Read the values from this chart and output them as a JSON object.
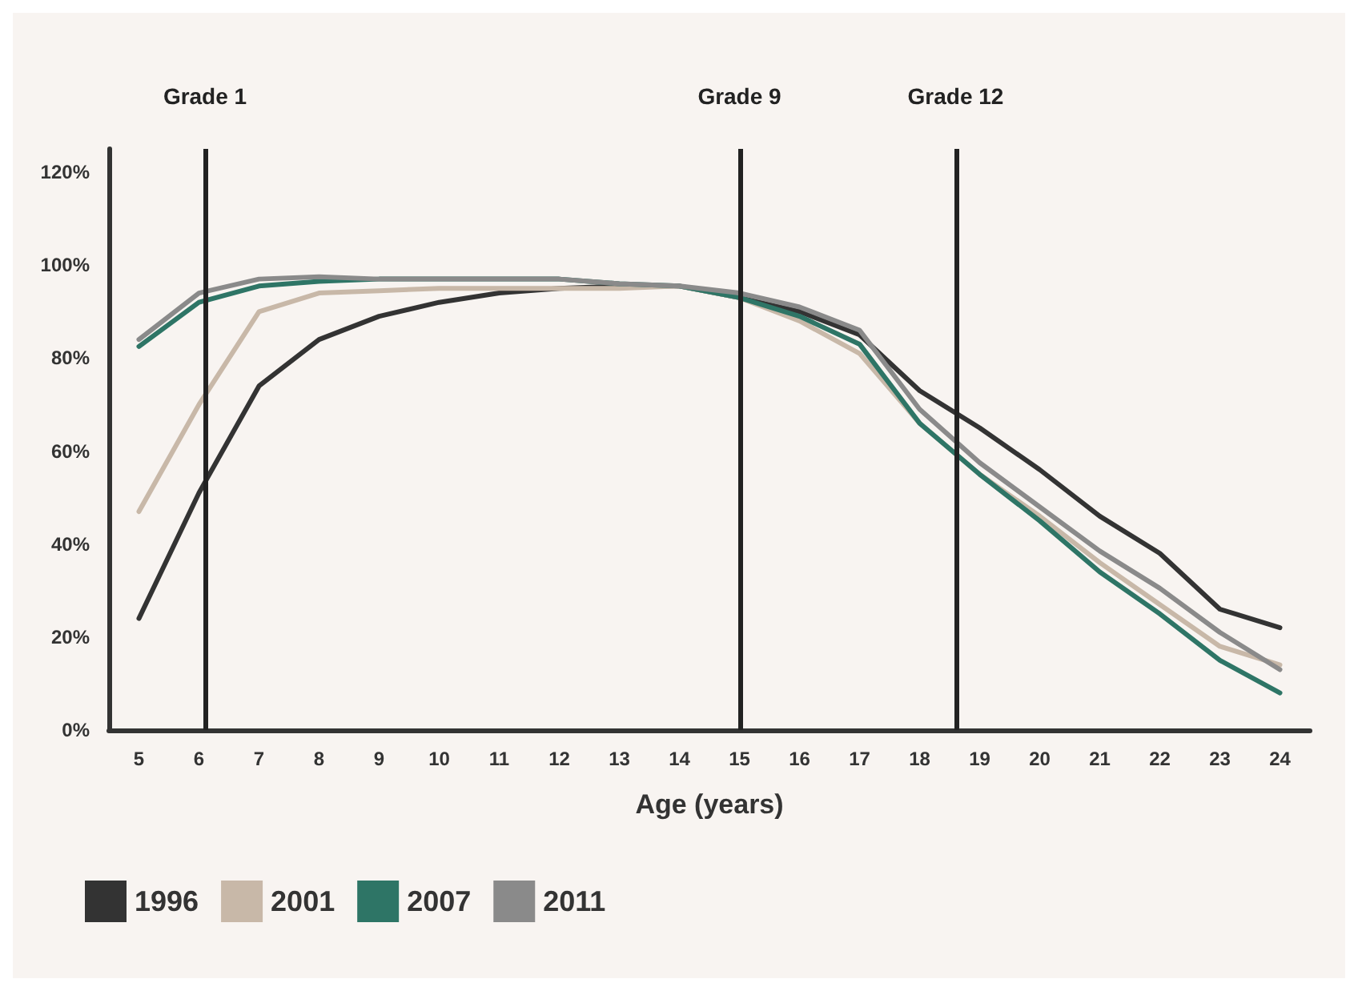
{
  "chart_data": {
    "type": "line",
    "xlabel": "Age (years)",
    "x": [
      5,
      6,
      7,
      8,
      9,
      10,
      11,
      12,
      13,
      14,
      15,
      16,
      17,
      18,
      19,
      20,
      21,
      22,
      23,
      24
    ],
    "series": [
      {
        "name": "1996",
        "color": "#333333",
        "values": [
          24,
          51,
          74,
          84,
          89,
          92,
          94,
          95,
          95.5,
          95.5,
          93,
          90,
          85,
          73,
          65,
          56,
          46,
          38,
          26,
          22
        ]
      },
      {
        "name": "2001",
        "color": "#c8b8a8",
        "values": [
          47,
          70,
          90,
          94,
          94.5,
          95,
          95,
          95,
          95,
          95.5,
          93,
          88,
          81,
          66,
          55,
          46,
          36,
          27,
          18,
          14
        ]
      },
      {
        "name": "2007",
        "color": "#2e7566",
        "values": [
          82.5,
          92,
          95.5,
          96.5,
          97,
          97,
          97,
          97,
          96,
          95.5,
          93,
          89,
          83,
          66,
          55,
          45,
          34,
          25,
          15,
          8
        ]
      },
      {
        "name": "2011",
        "color": "#8a8a8a",
        "values": [
          84,
          94,
          97,
          97.5,
          97,
          97,
          97,
          97,
          96,
          95.5,
          94,
          91,
          86,
          69,
          57.5,
          48,
          38.5,
          30.5,
          21,
          13
        ]
      }
    ],
    "xlim": [
      4.5,
      24.5
    ],
    "xticks": [
      5,
      6,
      7,
      8,
      9,
      10,
      11,
      12,
      13,
      14,
      15,
      16,
      17,
      18,
      19,
      20,
      21,
      22,
      23,
      24
    ],
    "ylim": [
      0,
      125
    ],
    "yticks": [
      {
        "value": 0,
        "label": "0%"
      },
      {
        "value": 20,
        "label": "20%"
      },
      {
        "value": 40,
        "label": "40%"
      },
      {
        "value": 60,
        "label": "60%"
      },
      {
        "value": 80,
        "label": "80%"
      },
      {
        "value": 100,
        "label": "100%"
      },
      {
        "value": 120,
        "label": "120%"
      }
    ],
    "ref_lines": [
      {
        "axis": "x",
        "value": 6.1,
        "label": "Grade 1",
        "color": "#222222"
      },
      {
        "axis": "x",
        "value": 15,
        "label": "Grade 9",
        "color": "#222222"
      },
      {
        "axis": "x",
        "value": 18.6,
        "label": "Grade 12",
        "color": "#222222"
      }
    ],
    "grid": false,
    "legend": "bottom left",
    "marker": "none",
    "line_style": "solid"
  }
}
